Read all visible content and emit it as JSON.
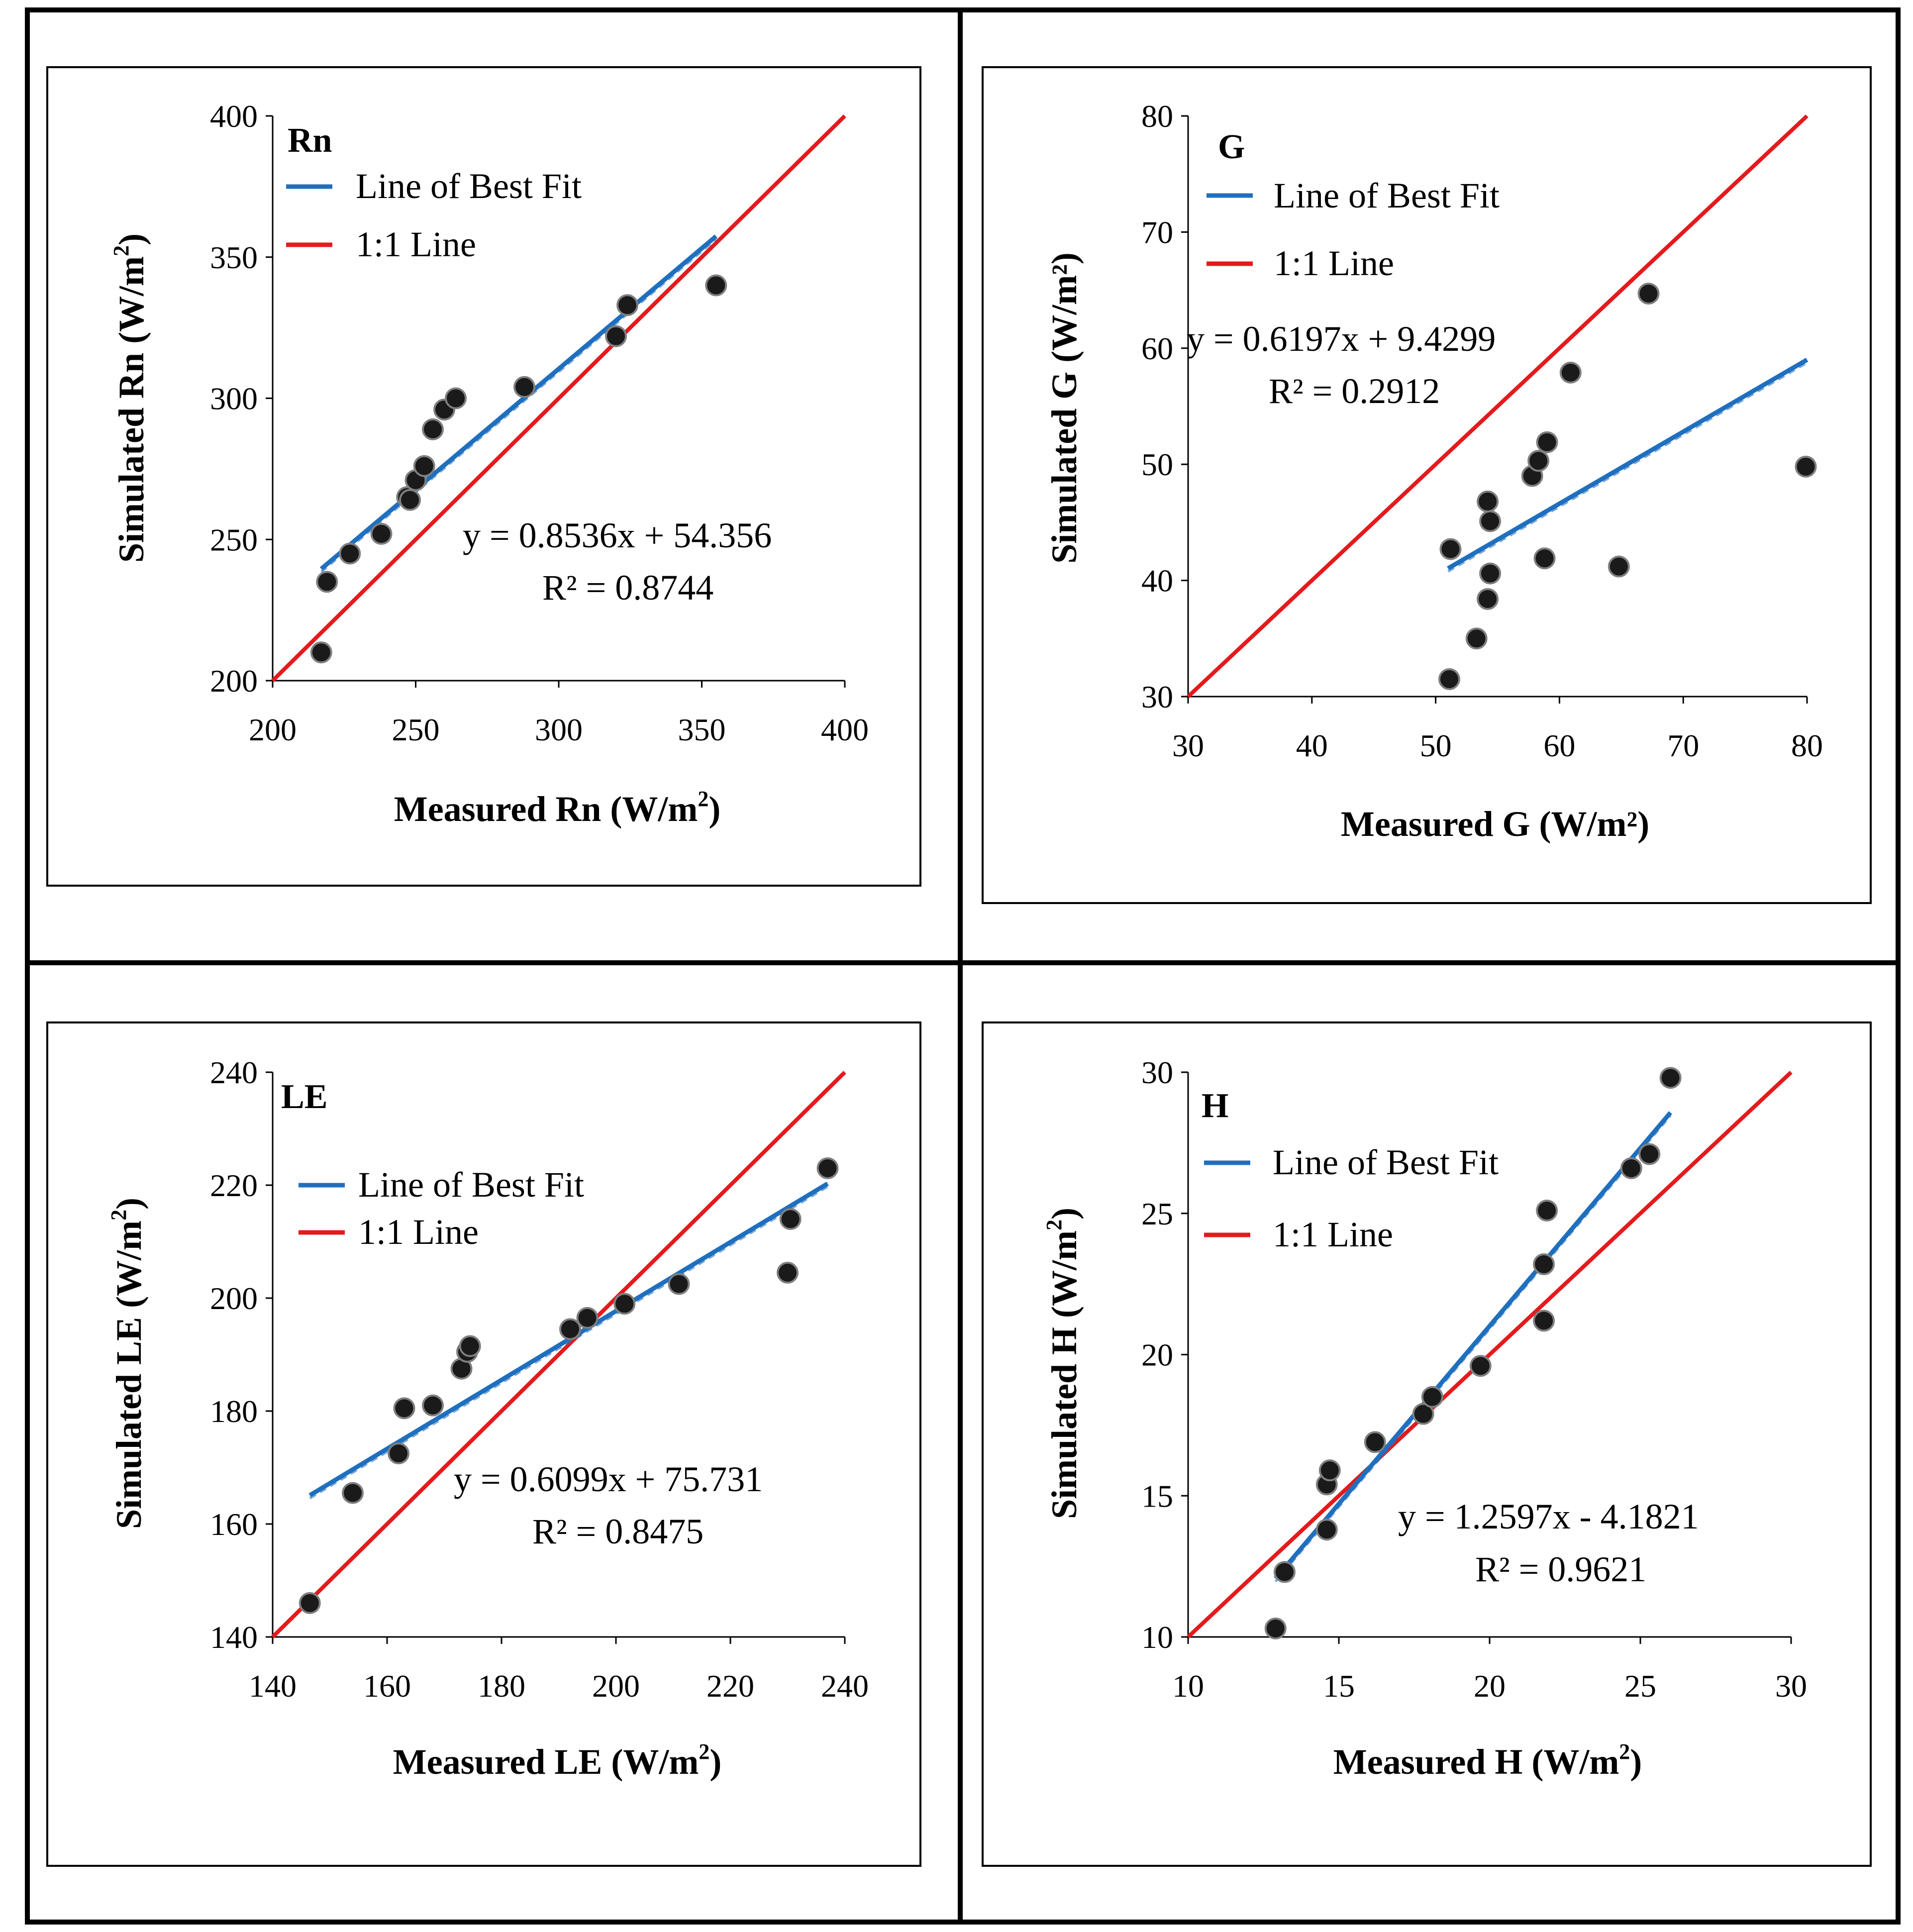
{
  "colors": {
    "best_fit": "#1f6fbf",
    "one_to_one": "#e41a1c",
    "marker_fill": "#1a1a1a",
    "marker_edge": "#7f7f7f"
  },
  "chart_data": [
    {
      "id": "rn",
      "type": "scatter",
      "panel_label": "Rn",
      "xlabel": "Measured Rn (W/m",
      "xlabel_sup": "2",
      "xlabel_end": ")",
      "ylabel": "Simulated Rn (W/m",
      "ylabel_sup": "2",
      "ylabel_end": ")",
      "xlim": [
        200,
        400
      ],
      "ylim": [
        200,
        400
      ],
      "xticks": [
        200,
        250,
        300,
        350,
        400
      ],
      "yticks": [
        200,
        250,
        300,
        350,
        400
      ],
      "legend": [
        "Line of Best Fit",
        "1:1 Line"
      ],
      "legend_position": "top-left",
      "equation": "y = 0.8536x + 54.356",
      "r2": "R² = 0.8744",
      "fit": {
        "slope": 0.8536,
        "intercept": 54.356,
        "x_range": [
          217,
          355
        ]
      },
      "points": [
        [
          217,
          210
        ],
        [
          219,
          235
        ],
        [
          227,
          245
        ],
        [
          238,
          252
        ],
        [
          247,
          265
        ],
        [
          248,
          264
        ],
        [
          250,
          271
        ],
        [
          253,
          276
        ],
        [
          256,
          289
        ],
        [
          260,
          296
        ],
        [
          264,
          300
        ],
        [
          288,
          304
        ],
        [
          320,
          322
        ],
        [
          324,
          333
        ],
        [
          355,
          340
        ]
      ]
    },
    {
      "id": "g",
      "type": "scatter",
      "panel_label": "G",
      "xlabel": "Measured G (W/m²)",
      "ylabel": "Simulated G (W/m²)",
      "xlim": [
        30,
        80
      ],
      "ylim": [
        30,
        80
      ],
      "xticks": [
        30,
        40,
        50,
        60,
        70,
        80
      ],
      "yticks": [
        30,
        40,
        50,
        60,
        70,
        80
      ],
      "legend": [
        "Line of Best Fit",
        "1:1 Line"
      ],
      "legend_position": "top-left",
      "equation": "y = 0.6197x + 9.4299",
      "r2": "R² = 0.2912",
      "fit": {
        "slope": 0.6197,
        "intercept": 9.4299,
        "x_range": [
          51,
          80
        ]
      },
      "points": [
        [
          51.1,
          31.5
        ],
        [
          51.2,
          42.7
        ],
        [
          53.3,
          35.0
        ],
        [
          54.2,
          38.4
        ],
        [
          54.4,
          40.6
        ],
        [
          54.4,
          45.1
        ],
        [
          54.2,
          46.8
        ],
        [
          57.8,
          49.0
        ],
        [
          58.3,
          50.3
        ],
        [
          59.0,
          51.9
        ],
        [
          58.8,
          41.9
        ],
        [
          60.9,
          57.9
        ],
        [
          64.8,
          41.2
        ],
        [
          67.2,
          64.7
        ],
        [
          79.9,
          49.8
        ]
      ]
    },
    {
      "id": "le",
      "type": "scatter",
      "panel_label": "LE",
      "xlabel": "Measured LE (W/m",
      "xlabel_sup": "2",
      "xlabel_end": ")",
      "ylabel": "Simulated LE (W/m",
      "ylabel_sup": "2",
      "ylabel_end": ")",
      "xlim": [
        140,
        240
      ],
      "ylim": [
        140,
        240
      ],
      "xticks": [
        140,
        160,
        180,
        200,
        220,
        240
      ],
      "yticks": [
        140,
        160,
        180,
        200,
        220,
        240
      ],
      "legend": [
        "Line of Best Fit",
        "1:1 Line"
      ],
      "legend_position": "top-left",
      "equation": "y = 0.6099x + 75.731",
      "r2": "R² = 0.8475",
      "fit": {
        "slope": 0.6099,
        "intercept": 75.731,
        "x_range": [
          146.5,
          237
        ]
      },
      "points": [
        [
          146.5,
          146
        ],
        [
          154,
          165.5
        ],
        [
          162,
          172.5
        ],
        [
          163,
          180.5
        ],
        [
          168,
          181
        ],
        [
          173,
          187.5
        ],
        [
          174,
          190.5
        ],
        [
          174.5,
          191.5
        ],
        [
          192,
          194.5
        ],
        [
          195,
          196.5
        ],
        [
          201.5,
          199
        ],
        [
          211,
          202.5
        ],
        [
          230.5,
          214
        ],
        [
          230,
          204.5
        ],
        [
          237,
          223
        ]
      ]
    },
    {
      "id": "h",
      "type": "scatter",
      "panel_label": "H",
      "xlabel": "Measured H (W/m",
      "xlabel_sup": "2",
      "xlabel_end": ")",
      "ylabel": "Simulated H (W/m",
      "ylabel_sup": "2",
      "ylabel_end": ")",
      "xlim": [
        10,
        30
      ],
      "ylim": [
        10,
        30
      ],
      "xticks": [
        10,
        15,
        20,
        25,
        30
      ],
      "yticks": [
        10,
        15,
        20,
        25,
        30
      ],
      "legend": [
        "Line of Best Fit",
        "1:1 Line"
      ],
      "legend_position": "top-left",
      "equation": "y = 1.2597x - 4.1821",
      "r2": "R² = 0.9621",
      "fit": {
        "slope": 1.2597,
        "intercept": -4.1821,
        "x_range": [
          12.9,
          26
        ]
      },
      "points": [
        [
          12.9,
          10.3
        ],
        [
          13.2,
          12.3
        ],
        [
          14.6,
          13.8
        ],
        [
          14.6,
          15.4
        ],
        [
          14.7,
          15.9
        ],
        [
          16.2,
          16.9
        ],
        [
          17.8,
          17.9
        ],
        [
          18.1,
          18.5
        ],
        [
          19.7,
          19.6
        ],
        [
          21.8,
          21.2
        ],
        [
          21.8,
          23.2
        ],
        [
          21.9,
          25.1
        ],
        [
          24.7,
          26.6
        ],
        [
          25.3,
          27.1
        ],
        [
          26.0,
          29.8
        ]
      ]
    }
  ]
}
